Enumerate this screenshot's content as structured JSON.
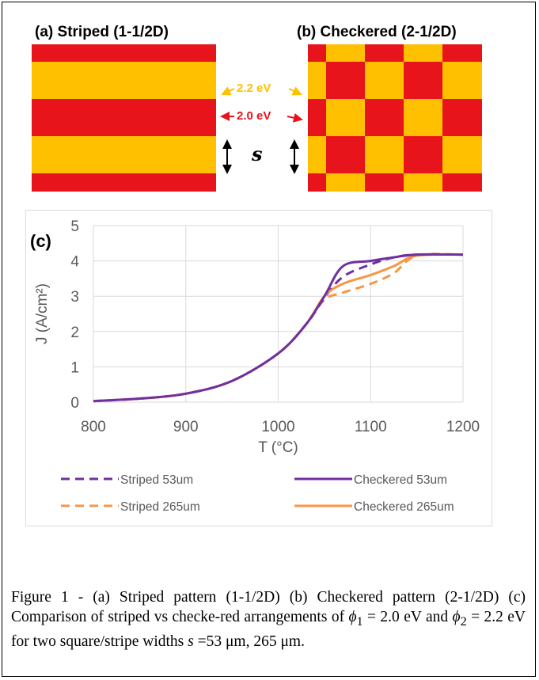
{
  "panel_a": {
    "label": "(a)",
    "title": "Striped (1-1/2D)"
  },
  "panel_b": {
    "label": "(b)",
    "title": "Checkered (2-1/2D)"
  },
  "annotations": {
    "high_work_function": "2.2 eV",
    "low_work_function": "2.0 eV",
    "width_symbol": "s"
  },
  "colors": {
    "red": "#e8141b",
    "yellow": "#ffc000",
    "purple": "#7030a0",
    "orange": "#f79646",
    "grid": "#d9d9d9"
  },
  "chart_data": {
    "type": "line",
    "panel_label": "(c)",
    "xlabel": "T (°C)",
    "ylabel": "J (A/cm²)",
    "xlim": [
      800,
      1200
    ],
    "ylim": [
      0,
      5
    ],
    "xticks": [
      "800",
      "900",
      "1000",
      "1100",
      "1200"
    ],
    "yticks": [
      "0",
      "1",
      "2",
      "3",
      "4",
      "5"
    ],
    "grid": true,
    "legend_position": "bottom",
    "series": [
      {
        "name": "Striped 53um",
        "color": "#7030a0",
        "dash": true,
        "x": [
          800,
          850,
          900,
          950,
          1000,
          1030,
          1050,
          1070,
          1100,
          1125,
          1150,
          1200
        ],
        "y": [
          0.03,
          0.1,
          0.24,
          0.6,
          1.38,
          2.2,
          2.95,
          3.55,
          3.9,
          4.1,
          4.18,
          4.18
        ]
      },
      {
        "name": "Checkered 53um",
        "color": "#7030a0",
        "dash": false,
        "x": [
          800,
          850,
          900,
          950,
          1000,
          1030,
          1050,
          1070,
          1100,
          1125,
          1150,
          1200
        ],
        "y": [
          0.03,
          0.1,
          0.24,
          0.6,
          1.38,
          2.2,
          3.0,
          3.85,
          4.0,
          4.1,
          4.18,
          4.18
        ]
      },
      {
        "name": "Striped 265um",
        "color": "#f79646",
        "dash": true,
        "x": [
          800,
          850,
          900,
          950,
          1000,
          1030,
          1050,
          1070,
          1100,
          1125,
          1150,
          1200
        ],
        "y": [
          0.03,
          0.1,
          0.24,
          0.6,
          1.38,
          2.2,
          2.9,
          3.1,
          3.35,
          3.65,
          4.15,
          4.18
        ]
      },
      {
        "name": "Checkered 265um",
        "color": "#f79646",
        "dash": false,
        "x": [
          800,
          850,
          900,
          950,
          1000,
          1030,
          1050,
          1070,
          1100,
          1125,
          1150,
          1200
        ],
        "y": [
          0.03,
          0.1,
          0.24,
          0.6,
          1.38,
          2.2,
          3.0,
          3.35,
          3.6,
          3.85,
          4.15,
          4.18
        ]
      }
    ]
  },
  "caption": {
    "part1": "Figure 1 - (a) Striped pattern (1-1/2D) (b) Checkered pattern (2-1/2D) (c) Comparison of striped  vs checke-red arrangements of ",
    "phi1": "ϕ",
    "phi1_sub": "1",
    "phi1_val": " = 2.0 eV and ",
    "phi2": "ϕ",
    "phi2_sub": "2",
    "phi2_val": " = 2.2 eV for two square/stripe widths ",
    "s_sym": "s",
    "part2": " =53 μm, 265 μm."
  }
}
